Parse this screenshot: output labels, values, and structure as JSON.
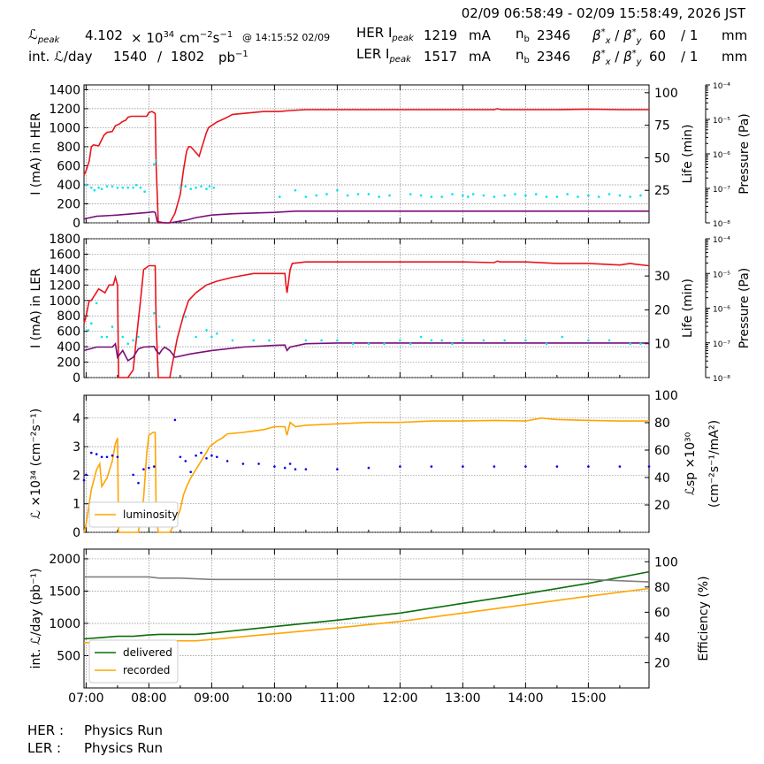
{
  "header": {
    "time_range": "02/09 06:58:49 - 02/09 15:58:49, 2026 JST",
    "lpeak_label": "ℒ",
    "lpeak_sub": "peak",
    "lpeak_value": "4.102",
    "lpeak_mult": "× 10",
    "lpeak_exp": "34",
    "lpeak_unit_a": "cm",
    "lpeak_unit_exp_a": "−2",
    "lpeak_unit_b": "s",
    "lpeak_unit_exp_b": "−1",
    "lpeak_time": "@ 14:15:52 02/09",
    "intl_label": "int. ℒ/day",
    "intl_value_recorded": "1540",
    "intl_sep": "/",
    "intl_value_delivered": "1802",
    "intl_unit": "pb",
    "intl_unit_exp": "−1",
    "her_label": "HER I",
    "her_sub": "peak",
    "her_value": "1219",
    "her_unit": "mA",
    "ler_label": "LER I",
    "ler_sub": "peak",
    "ler_value": "1517",
    "ler_unit": "mA",
    "nb_label": "n",
    "nb_sub": "b",
    "her_nb": "2346",
    "ler_nb": "2346",
    "beta_label": "β",
    "beta_x_sub": "x",
    "beta_y_sub": "y",
    "beta_sup": "*",
    "beta_sep": " / ",
    "her_beta_x": "60",
    "her_beta_y": "/ 1",
    "ler_beta_x": "60",
    "ler_beta_y": "/ 1",
    "beta_unit": "mm"
  },
  "footer": {
    "her_label": "HER :",
    "her_status": "Physics Run",
    "ler_label": "LER :",
    "ler_status": "Physics Run"
  },
  "colors": {
    "current": "#e8141c",
    "life": "#7a0f7a",
    "pressure": "#00e5ee",
    "luminosity": "#ffa500",
    "specific": "#0000ee",
    "delivered": "#0a6e0a",
    "recorded": "#ffa500",
    "efficiency": "#808080"
  },
  "chart_data": [
    {
      "type": "line",
      "panel": "her",
      "ylabel": "I (mA) in HER",
      "ylabel2": "Life (min)",
      "ylabel3": "Pressure (Pa)",
      "ylim": [
        0,
        1450
      ],
      "yticks": [
        0,
        200,
        400,
        600,
        800,
        1000,
        1200,
        1400
      ],
      "y2lim": [
        0,
        106
      ],
      "y2ticks": [
        25,
        50,
        75,
        100
      ],
      "y3ticks": [
        "10⁻⁸",
        "10⁻⁷",
        "10⁻⁶",
        "10⁻⁵",
        "10⁻⁴"
      ],
      "series": [
        {
          "key": "current",
          "x": [
            "06:58",
            "07:00",
            "07:03",
            "07:05",
            "07:07",
            "07:12",
            "07:17",
            "07:20",
            "07:25",
            "07:28",
            "07:32",
            "07:34",
            "07:38",
            "07:40",
            "07:43",
            "07:50",
            "07:58",
            "08:00",
            "08:03",
            "08:06",
            "08:07",
            "08:09",
            "08:17",
            "08:20",
            "08:25",
            "08:30",
            "08:33",
            "08:36",
            "08:38",
            "08:40",
            "08:48",
            "08:55",
            "08:57",
            "09:05",
            "09:13",
            "09:20",
            "09:30",
            "09:40",
            "09:50",
            "10:05",
            "10:15",
            "10:30",
            "11:00",
            "12:00",
            "13:00",
            "13:30",
            "13:33",
            "13:37",
            "14:00",
            "14:30",
            "15:00",
            "15:30",
            "15:58"
          ],
          "y": [
            500,
            550,
            650,
            800,
            820,
            810,
            920,
            950,
            960,
            1020,
            1040,
            1060,
            1080,
            1110,
            1120,
            1120,
            1120,
            1160,
            1170,
            1150,
            600,
            0,
            0,
            0,
            100,
            300,
            550,
            750,
            800,
            800,
            700,
            950,
            1000,
            1060,
            1100,
            1140,
            1150,
            1160,
            1170,
            1170,
            1180,
            1190,
            1190,
            1190,
            1190,
            1190,
            1200,
            1190,
            1190,
            1190,
            1195,
            1190,
            1190
          ]
        },
        {
          "key": "life",
          "x": [
            "06:58",
            "07:10",
            "07:30",
            "07:45",
            "08:00",
            "08:04",
            "08:06",
            "08:08",
            "08:15",
            "08:20",
            "08:35",
            "08:45",
            "09:00",
            "09:20",
            "10:00",
            "10:20",
            "10:30",
            "11:00",
            "13:00",
            "15:58"
          ],
          "y": [
            3,
            5,
            6,
            7,
            8,
            8.5,
            8,
            1,
            0,
            0,
            2,
            4,
            6,
            7,
            8,
            9,
            9,
            9,
            9,
            9
          ]
        },
        {
          "key": "pressure",
          "x": [
            "07:00",
            "07:05",
            "07:08",
            "07:12",
            "07:15",
            "07:20",
            "07:25",
            "07:30",
            "07:35",
            "07:40",
            "07:45",
            "07:48",
            "07:52",
            "07:56",
            "08:05",
            "08:07",
            "08:30",
            "08:35",
            "08:40",
            "08:45",
            "08:50",
            "08:55",
            "08:58",
            "09:02",
            "10:05",
            "10:20",
            "10:30",
            "10:40",
            "10:50",
            "11:00",
            "11:10",
            "11:20",
            "11:30",
            "11:40",
            "11:50",
            "12:10",
            "12:20",
            "12:30",
            "12:40",
            "12:50",
            "13:00",
            "13:05",
            "13:10",
            "13:20",
            "13:30",
            "13:40",
            "13:50",
            "14:00",
            "14:10",
            "14:20",
            "14:30",
            "14:40",
            "14:50",
            "15:00",
            "15:10",
            "15:20",
            "15:30",
            "15:40",
            "15:50"
          ],
          "y": [
            29,
            27,
            25,
            27,
            26,
            28,
            28,
            27,
            27,
            27,
            27,
            29,
            27,
            24,
            45,
            48,
            27,
            28,
            26,
            27,
            28,
            26,
            28,
            27,
            20,
            25,
            20,
            21,
            22,
            25,
            21,
            22,
            22,
            20,
            21,
            22,
            21,
            20,
            20,
            22,
            21,
            20,
            22,
            21,
            20,
            21,
            22,
            21,
            22,
            20,
            20,
            22,
            20,
            21,
            20,
            22,
            21,
            20,
            21
          ]
        }
      ]
    },
    {
      "type": "line",
      "panel": "ler",
      "ylabel": "I (mA) in LER",
      "ylabel2": "Life (min)",
      "ylabel3": "Pressure (Pa)",
      "ylim": [
        0,
        1800
      ],
      "yticks": [
        0,
        200,
        400,
        600,
        800,
        1000,
        1200,
        1400,
        1600,
        1800
      ],
      "y2lim": [
        0,
        41
      ],
      "y2ticks": [
        10,
        20,
        30
      ],
      "y3ticks": [
        "10⁻⁸",
        "10⁻⁷",
        "10⁻⁶",
        "10⁻⁵",
        "10⁻⁴"
      ],
      "series": [
        {
          "key": "current",
          "x": [
            "06:58",
            "07:00",
            "07:03",
            "07:05",
            "07:12",
            "07:18",
            "07:22",
            "07:26",
            "07:28",
            "07:30",
            "07:31",
            "07:40",
            "07:45",
            "07:48",
            "07:52",
            "07:55",
            "08:00",
            "08:06",
            "08:07",
            "08:09",
            "08:17",
            "08:20",
            "08:27",
            "08:33",
            "08:38",
            "08:45",
            "08:55",
            "09:05",
            "09:20",
            "09:40",
            "09:53",
            "10:10",
            "10:11",
            "10:12",
            "10:15",
            "10:17",
            "10:30",
            "11:00",
            "13:00",
            "13:30",
            "13:33",
            "13:36",
            "14:00",
            "14:30",
            "15:00",
            "15:30",
            "15:40",
            "15:45",
            "15:58"
          ],
          "y": [
            700,
            800,
            1000,
            1000,
            1150,
            1100,
            1200,
            1200,
            1300,
            1200,
            0,
            0,
            100,
            500,
            1000,
            1400,
            1450,
            1450,
            700,
            0,
            0,
            0,
            500,
            800,
            1000,
            1100,
            1200,
            1250,
            1300,
            1350,
            1350,
            1350,
            1200,
            1100,
            1400,
            1480,
            1500,
            1500,
            1500,
            1490,
            1510,
            1500,
            1500,
            1480,
            1480,
            1460,
            1480,
            1470,
            1450
          ]
        },
        {
          "key": "life",
          "x": [
            "06:58",
            "07:10",
            "07:25",
            "07:28",
            "07:30",
            "07:35",
            "07:40",
            "07:45",
            "07:50",
            "07:55",
            "08:05",
            "08:07",
            "08:10",
            "08:12",
            "08:15",
            "08:20",
            "08:25",
            "08:40",
            "09:00",
            "09:30",
            "10:00",
            "10:10",
            "10:12",
            "10:15",
            "10:30",
            "11:00",
            "13:00",
            "15:00",
            "15:58"
          ],
          "y": [
            8,
            9,
            9,
            10,
            6,
            8,
            5,
            6,
            8.5,
            9,
            9.2,
            8,
            7,
            8,
            9,
            8,
            6,
            7,
            8,
            9,
            9.5,
            9.6,
            8,
            9,
            10,
            10.2,
            10.2,
            10.2,
            10.2
          ]
        },
        {
          "key": "pressure",
          "x": [
            "07:02",
            "07:05",
            "07:10",
            "07:15",
            "07:20",
            "07:25",
            "07:35",
            "07:40",
            "07:45",
            "07:50",
            "08:05",
            "08:10",
            "08:35",
            "08:45",
            "08:55",
            "09:00",
            "09:05",
            "09:20",
            "09:40",
            "09:55",
            "10:30",
            "10:45",
            "11:00",
            "11:15",
            "11:30",
            "11:45",
            "12:00",
            "12:10",
            "12:20",
            "12:30",
            "12:40",
            "12:50",
            "13:00",
            "13:20",
            "13:40",
            "14:00",
            "14:20",
            "14:35",
            "15:00",
            "15:20",
            "15:40",
            "15:50"
          ],
          "y": [
            14,
            16,
            22,
            12,
            12,
            15,
            12,
            10,
            11,
            12,
            19,
            15,
            18,
            12,
            14,
            12,
            13,
            11,
            11,
            11,
            11,
            11,
            11,
            10,
            10,
            10,
            11,
            10,
            12,
            11,
            11,
            10,
            11,
            11,
            11,
            11,
            10,
            12,
            11,
            11,
            10,
            10
          ]
        }
      ]
    },
    {
      "type": "line",
      "panel": "luminosity",
      "ylabel": "ℒ ×10³⁴ (cm⁻²s⁻¹)",
      "ylabel2": "ℒsp ×10³⁰ (cm⁻²s⁻¹/mA²)",
      "ylim": [
        0,
        4.8
      ],
      "yticks": [
        0,
        1,
        2,
        3,
        4
      ],
      "y2lim": [
        0,
        100
      ],
      "y2ticks": [
        20,
        40,
        60,
        80,
        100
      ],
      "legend": "bottom-left",
      "series": [
        {
          "key": "luminosity",
          "name": "luminosity",
          "x": [
            "06:58",
            "07:00",
            "07:05",
            "07:10",
            "07:13",
            "07:15",
            "07:20",
            "07:25",
            "07:28",
            "07:30",
            "07:31",
            "07:40",
            "07:50",
            "07:55",
            "07:58",
            "08:00",
            "08:04",
            "08:06",
            "08:07",
            "08:09",
            "08:17",
            "08:20",
            "08:25",
            "08:30",
            "08:33",
            "08:36",
            "08:40",
            "08:45",
            "08:50",
            "08:55",
            "08:58",
            "09:05",
            "09:10",
            "09:15",
            "09:30",
            "09:40",
            "09:50",
            "10:00",
            "10:10",
            "10:12",
            "10:15",
            "10:20",
            "10:30",
            "11:00",
            "11:30",
            "12:00",
            "12:30",
            "13:00",
            "13:30",
            "14:00",
            "14:15",
            "14:30",
            "15:00",
            "15:30",
            "15:58"
          ],
          "y": [
            0,
            0.3,
            1.5,
            2.2,
            2.4,
            1.6,
            1.9,
            2.5,
            3.1,
            3.3,
            0,
            0,
            0,
            1.2,
            2.8,
            3.4,
            3.5,
            3.5,
            0.6,
            0,
            0,
            0,
            0.3,
            0.8,
            1.3,
            1.6,
            1.9,
            2.2,
            2.5,
            2.8,
            3.0,
            3.2,
            3.3,
            3.45,
            3.5,
            3.55,
            3.6,
            3.7,
            3.7,
            3.4,
            3.85,
            3.7,
            3.75,
            3.8,
            3.85,
            3.85,
            3.9,
            3.9,
            3.92,
            3.9,
            4.0,
            3.95,
            3.92,
            3.9,
            3.9
          ]
        },
        {
          "key": "specific",
          "x": [
            "06:58",
            "07:00",
            "07:05",
            "07:10",
            "07:15",
            "07:20",
            "07:25",
            "07:30",
            "07:45",
            "07:50",
            "07:55",
            "08:00",
            "08:05",
            "08:25",
            "08:30",
            "08:35",
            "08:40",
            "08:45",
            "08:50",
            "08:55",
            "09:00",
            "09:05",
            "09:15",
            "09:30",
            "09:45",
            "10:00",
            "10:10",
            "10:15",
            "10:20",
            "10:30",
            "11:00",
            "11:30",
            "12:00",
            "12:30",
            "13:00",
            "13:30",
            "14:00",
            "14:30",
            "15:00",
            "15:30",
            "15:58"
          ],
          "y": [
            38,
            42,
            58,
            57,
            55,
            55,
            56,
            55,
            42,
            36,
            46,
            47,
            48,
            82,
            55,
            52,
            44,
            56,
            58,
            54,
            56,
            55,
            52,
            50,
            50,
            48,
            47,
            50,
            46,
            46,
            46,
            47,
            48,
            48,
            48,
            48,
            48,
            48,
            48,
            48,
            48
          ]
        }
      ]
    },
    {
      "type": "line",
      "panel": "integrated",
      "ylabel": "int. ℒ/day (pb⁻¹)",
      "ylabel2": "Efficiency (%)",
      "xlabel": "",
      "xticks": [
        "07:00",
        "08:00",
        "09:00",
        "10:00",
        "11:00",
        "12:00",
        "13:00",
        "14:00",
        "15:00"
      ],
      "xlim": [
        "06:58",
        "15:58"
      ],
      "ylim": [
        0,
        2150
      ],
      "yticks": [
        500,
        1000,
        1500,
        2000
      ],
      "y2lim": [
        0,
        110
      ],
      "y2ticks": [
        20,
        40,
        60,
        80,
        100
      ],
      "legend": "bottom-left",
      "series": [
        {
          "key": "delivered",
          "name": "delivered",
          "x": [
            "06:58",
            "07:10",
            "07:30",
            "07:45",
            "08:00",
            "08:10",
            "08:30",
            "08:45",
            "09:00",
            "10:00",
            "11:00",
            "12:00",
            "13:00",
            "14:00",
            "15:00",
            "15:58"
          ],
          "y": [
            760,
            775,
            800,
            800,
            820,
            830,
            830,
            830,
            850,
            950,
            1050,
            1160,
            1310,
            1460,
            1620,
            1800
          ]
        },
        {
          "key": "recorded",
          "name": "recorded",
          "x": [
            "06:58",
            "07:10",
            "07:30",
            "07:45",
            "08:00",
            "08:10",
            "08:30",
            "08:45",
            "09:00",
            "10:00",
            "11:00",
            "12:00",
            "13:00",
            "14:00",
            "15:00",
            "15:58"
          ],
          "y": [
            700,
            710,
            715,
            715,
            730,
            730,
            730,
            730,
            750,
            840,
            930,
            1030,
            1160,
            1290,
            1420,
            1540
          ]
        },
        {
          "key": "efficiency",
          "x": [
            "06:58",
            "07:30",
            "08:00",
            "08:10",
            "08:30",
            "09:00",
            "10:00",
            "11:00",
            "12:00",
            "13:00",
            "14:00",
            "15:00",
            "15:58"
          ],
          "y": [
            88,
            88,
            88,
            87,
            87,
            86,
            86,
            86,
            86,
            86,
            86,
            86,
            84
          ]
        }
      ]
    }
  ]
}
